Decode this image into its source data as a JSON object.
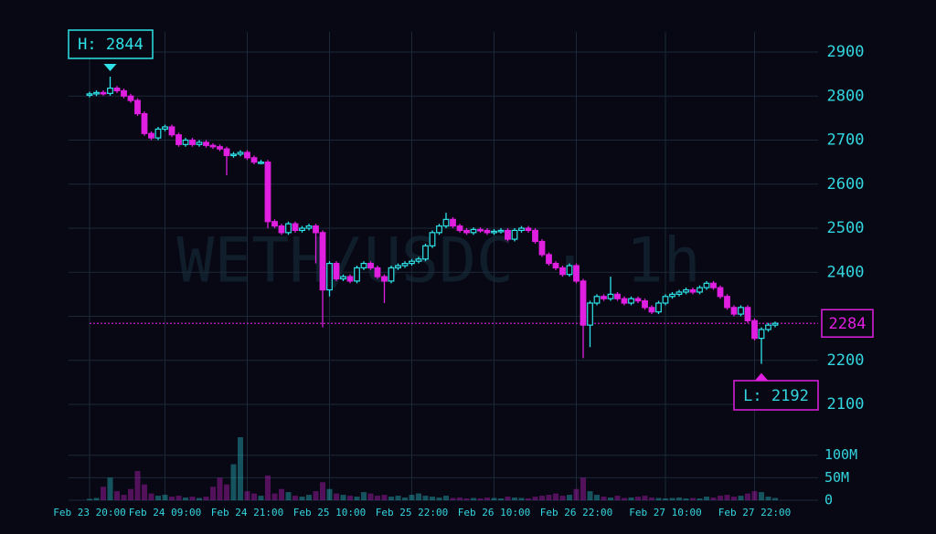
{
  "chart_data": {
    "type": "candlestick",
    "watermark": "WETH/USDC · 1h",
    "categories": [
      "Feb 23 20:00",
      null,
      null,
      null,
      null,
      null,
      null,
      null,
      null,
      null,
      null,
      "Feb 24 09:00",
      null,
      null,
      null,
      null,
      null,
      null,
      null,
      null,
      null,
      null,
      null,
      "Feb 24 21:00",
      null,
      null,
      null,
      null,
      null,
      null,
      null,
      null,
      null,
      null,
      null,
      "Feb 25 10:00",
      null,
      null,
      null,
      null,
      null,
      null,
      null,
      null,
      null,
      null,
      null,
      "Feb 25 22:00",
      null,
      null,
      null,
      null,
      null,
      null,
      null,
      null,
      null,
      null,
      null,
      "Feb 26 10:00",
      null,
      null,
      null,
      null,
      null,
      null,
      null,
      null,
      null,
      null,
      null,
      "Feb 26 22:00",
      null,
      null,
      null,
      null,
      null,
      null,
      null,
      null,
      null,
      null,
      null,
      null,
      "Feb 27 10:00",
      null,
      null,
      null,
      null,
      null,
      null,
      null,
      null,
      null,
      null,
      null,
      null,
      "Feb 27 22:00",
      null,
      null,
      null
    ],
    "open": [
      2802,
      2805,
      2808,
      2806,
      2818,
      2812,
      2800,
      2790,
      2760,
      2715,
      2705,
      2725,
      2730,
      2712,
      2690,
      2700,
      2690,
      2695,
      2688,
      2685,
      2680,
      2665,
      2668,
      2672,
      2660,
      2650,
      2650,
      2515,
      2505,
      2490,
      2510,
      2495,
      2500,
      2505,
      2490,
      2360,
      2420,
      2385,
      2390,
      2380,
      2410,
      2420,
      2410,
      2390,
      2380,
      2410,
      2415,
      2420,
      2425,
      2430,
      2460,
      2490,
      2505,
      2520,
      2505,
      2495,
      2490,
      2497,
      2495,
      2490,
      2493,
      2495,
      2475,
      2495,
      2500,
      2495,
      2470,
      2440,
      2420,
      2410,
      2395,
      2415,
      2380,
      2280,
      2330,
      2345,
      2340,
      2350,
      2340,
      2330,
      2340,
      2335,
      2320,
      2310,
      2330,
      2345,
      2350,
      2355,
      2360,
      2355,
      2365,
      2375,
      2365,
      2345,
      2320,
      2305,
      2320,
      2290,
      2250,
      2270,
      2280
    ],
    "high": [
      2810,
      2813,
      2813,
      2844,
      2823,
      2817,
      2805,
      2795,
      2765,
      2720,
      2730,
      2735,
      2735,
      2717,
      2705,
      2705,
      2700,
      2700,
      2693,
      2690,
      2685,
      2673,
      2677,
      2677,
      2665,
      2655,
      2655,
      2520,
      2510,
      2515,
      2515,
      2505,
      2510,
      2510,
      2495,
      2425,
      2425,
      2395,
      2395,
      2415,
      2425,
      2425,
      2415,
      2395,
      2415,
      2420,
      2425,
      2430,
      2435,
      2465,
      2495,
      2510,
      2535,
      2525,
      2510,
      2500,
      2502,
      2502,
      2500,
      2498,
      2500,
      2500,
      2500,
      2505,
      2505,
      2500,
      2475,
      2445,
      2425,
      2415,
      2420,
      2420,
      2385,
      2335,
      2350,
      2350,
      2390,
      2355,
      2345,
      2345,
      2345,
      2340,
      2325,
      2335,
      2350,
      2355,
      2360,
      2365,
      2365,
      2370,
      2380,
      2380,
      2370,
      2350,
      2325,
      2325,
      2325,
      2295,
      2275,
      2285,
      2288
    ],
    "low": [
      2797,
      2800,
      2801,
      2801,
      2807,
      2795,
      2785,
      2755,
      2710,
      2700,
      2700,
      2720,
      2707,
      2685,
      2685,
      2685,
      2685,
      2683,
      2680,
      2675,
      2620,
      2660,
      2663,
      2655,
      2645,
      2645,
      2500,
      2500,
      2485,
      2485,
      2490,
      2490,
      2495,
      2420,
      2275,
      2345,
      2380,
      2380,
      2375,
      2375,
      2405,
      2405,
      2385,
      2330,
      2375,
      2405,
      2410,
      2415,
      2420,
      2425,
      2455,
      2485,
      2500,
      2500,
      2490,
      2485,
      2485,
      2490,
      2485,
      2485,
      2488,
      2470,
      2470,
      2490,
      2490,
      2465,
      2435,
      2415,
      2405,
      2390,
      2390,
      2375,
      2205,
      2230,
      2325,
      2335,
      2335,
      2335,
      2325,
      2325,
      2330,
      2315,
      2305,
      2305,
      2325,
      2340,
      2345,
      2350,
      2350,
      2350,
      2360,
      2360,
      2340,
      2315,
      2300,
      2300,
      2285,
      2245,
      2192,
      2265,
      2275
    ],
    "close": [
      2805,
      2808,
      2806,
      2818,
      2812,
      2800,
      2790,
      2760,
      2715,
      2705,
      2725,
      2730,
      2712,
      2690,
      2700,
      2690,
      2695,
      2688,
      2685,
      2680,
      2665,
      2668,
      2672,
      2660,
      2650,
      2650,
      2515,
      2505,
      2490,
      2510,
      2495,
      2500,
      2505,
      2490,
      2360,
      2420,
      2385,
      2390,
      2380,
      2410,
      2420,
      2410,
      2390,
      2380,
      2410,
      2415,
      2420,
      2425,
      2430,
      2460,
      2490,
      2505,
      2520,
      2505,
      2495,
      2490,
      2497,
      2495,
      2490,
      2493,
      2495,
      2475,
      2495,
      2500,
      2495,
      2470,
      2440,
      2420,
      2410,
      2395,
      2415,
      2380,
      2280,
      2330,
      2345,
      2340,
      2350,
      2340,
      2330,
      2340,
      2335,
      2320,
      2310,
      2330,
      2345,
      2350,
      2355,
      2360,
      2355,
      2365,
      2375,
      2365,
      2345,
      2320,
      2305,
      2320,
      2290,
      2250,
      2270,
      2280,
      2284
    ],
    "volume": [
      3,
      5,
      30,
      50,
      20,
      12,
      25,
      65,
      35,
      15,
      10,
      12,
      8,
      10,
      6,
      8,
      5,
      8,
      30,
      50,
      35,
      80,
      140,
      20,
      15,
      10,
      55,
      15,
      25,
      18,
      10,
      8,
      12,
      20,
      40,
      25,
      15,
      12,
      10,
      8,
      18,
      15,
      10,
      12,
      8,
      10,
      6,
      12,
      15,
      10,
      8,
      6,
      10,
      5,
      6,
      4,
      5,
      4,
      6,
      5,
      4,
      8,
      6,
      5,
      4,
      8,
      10,
      12,
      15,
      10,
      12,
      25,
      50,
      20,
      12,
      8,
      6,
      10,
      5,
      6,
      8,
      10,
      6,
      5,
      4,
      5,
      6,
      4,
      5,
      4,
      8,
      6,
      10,
      12,
      8,
      10,
      15,
      20,
      18,
      8,
      5
    ],
    "ylim": [
      2100,
      2900
    ],
    "yticks": [
      2100,
      2200,
      2300,
      2400,
      2500,
      2600,
      2700,
      2800,
      2900
    ],
    "volume_ylim": [
      0,
      142
    ],
    "volume_ticks": [
      0,
      {
        "value": 50,
        "label": "50M"
      },
      {
        "value": 100,
        "label": "100M"
      }
    ],
    "up_color": "#2ee3e8",
    "down_color": "#e01fe0",
    "grid": true,
    "annotations": {
      "high": "H: 2844",
      "low": "L: 2192"
    }
  }
}
